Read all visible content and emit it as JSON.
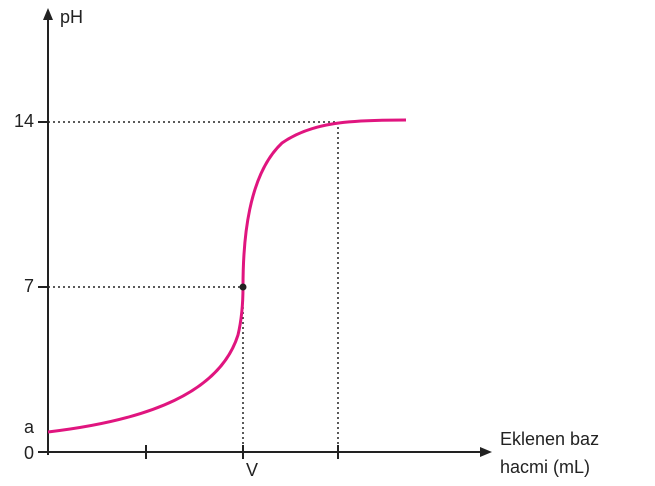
{
  "y_axis_label": "pH",
  "x_axis_label": [
    "Eklenen baz",
    "hacmi (mL)"
  ],
  "y_tick_labels": [
    "14",
    "7",
    "a",
    "0"
  ],
  "x_tick_label": "V"
}
